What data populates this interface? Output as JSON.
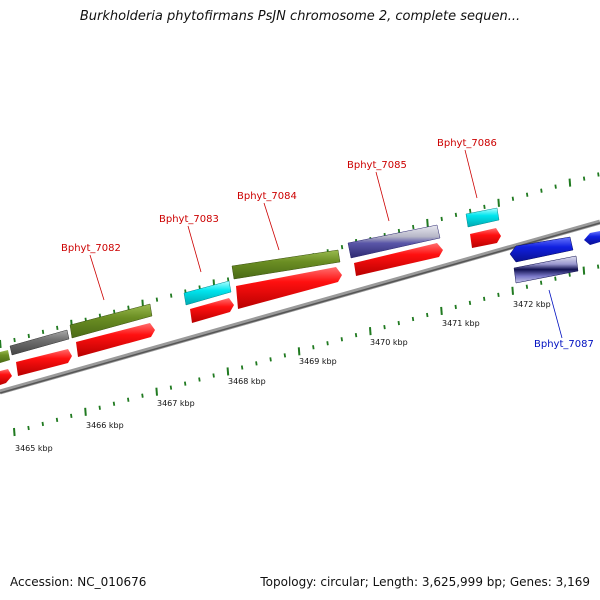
{
  "title": "Burkholderia phytofirmans PsJN chromosome 2, complete sequen...",
  "footer": {
    "accession": "Accession: NC_010676",
    "topology": "Topology: circular; Length: 3,625,999 bp; Genes: 3,169"
  },
  "colors": {
    "forward_red": "#ff1010",
    "olive": "#6b8e23",
    "grey": "#777777",
    "cyan": "#00e5ee",
    "lavender": "#6a66b0",
    "blue": "#1020e0",
    "tick": "#207a20",
    "label_red": "#cc0000",
    "label_blue": "#0010c0"
  },
  "scale_ticks": [
    {
      "label": "3465 kbp"
    },
    {
      "label": "3466 kbp"
    },
    {
      "label": "3467 kbp"
    },
    {
      "label": "3468 kbp"
    },
    {
      "label": "3469 kbp"
    },
    {
      "label": "3470 kbp"
    },
    {
      "label": "3471 kbp"
    },
    {
      "label": "3472 kbp"
    }
  ],
  "gene_labels": [
    {
      "name": "Bphyt_7082",
      "color": "red"
    },
    {
      "name": "Bphyt_7083",
      "color": "red"
    },
    {
      "name": "Bphyt_7084",
      "color": "red"
    },
    {
      "name": "Bphyt_7085",
      "color": "red"
    },
    {
      "name": "Bphyt_7086",
      "color": "red"
    },
    {
      "name": "Bphyt_7087",
      "color": "blue"
    }
  ]
}
